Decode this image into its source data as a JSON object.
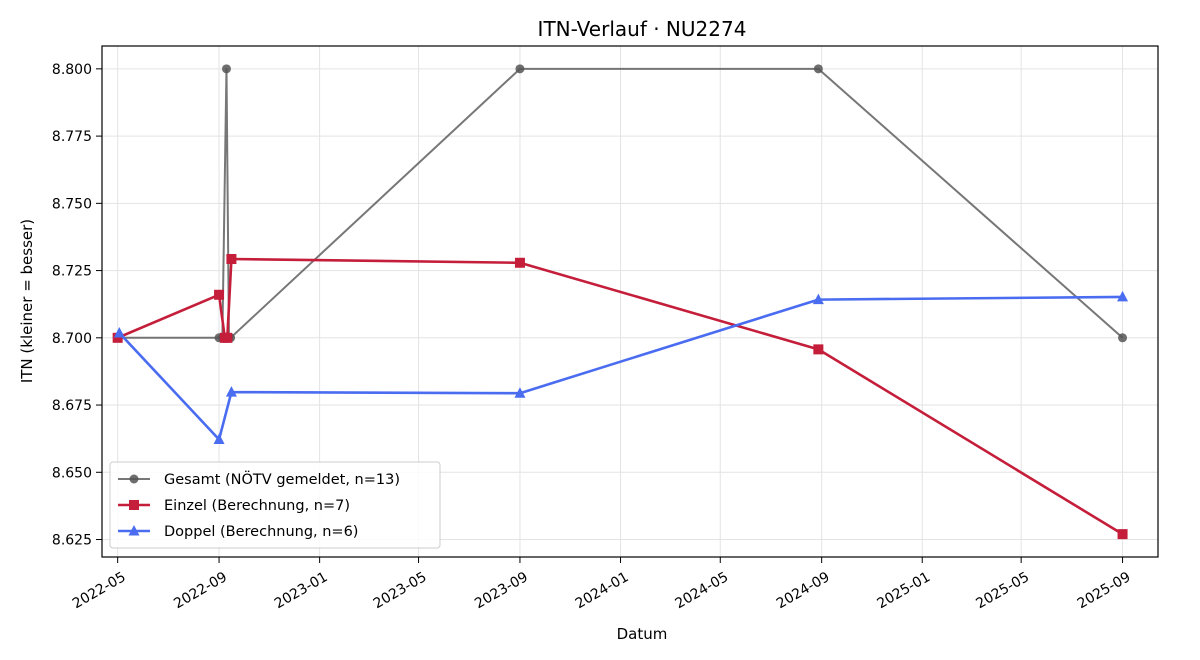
{
  "chart_data": {
    "type": "line",
    "title": "ITN-Verlauf · NU2274",
    "xlabel": "Datum",
    "ylabel": "ITN  (kleiner = besser)",
    "x_type": "date",
    "xlim": [
      "2022-04-12",
      "2025-10-14"
    ],
    "ylim": [
      8.6185,
      8.8085
    ],
    "x_ticks": [
      "2022-05-01",
      "2022-09-01",
      "2023-01-01",
      "2023-05-01",
      "2023-09-01",
      "2024-01-01",
      "2024-05-01",
      "2024-09-01",
      "2025-01-01",
      "2025-05-01",
      "2025-09-01"
    ],
    "x_tick_labels": [
      "2022-05",
      "2022-09",
      "2023-01",
      "2023-05",
      "2023-09",
      "2024-01",
      "2024-05",
      "2024-09",
      "2025-01",
      "2025-05",
      "2025-09"
    ],
    "y_ticks": [
      8.625,
      8.65,
      8.675,
      8.7,
      8.725,
      8.75,
      8.775,
      8.8
    ],
    "y_tick_labels": [
      "8.625",
      "8.650",
      "8.675",
      "8.700",
      "8.725",
      "8.750",
      "8.775",
      "8.800"
    ],
    "grid": true,
    "legend_position": "lower-left",
    "series": [
      {
        "name": "Gesamt (NÖTV gemeldet, n=13)",
        "color": "#555555",
        "marker": "circle",
        "points": [
          {
            "x": "2022-05-01",
            "y": 8.7
          },
          {
            "x": "2022-09-01",
            "y": 8.7
          },
          {
            "x": "2022-09-05",
            "y": 8.7
          },
          {
            "x": "2022-09-10",
            "y": 8.8
          },
          {
            "x": "2022-09-13",
            "y": 8.7
          },
          {
            "x": "2022-09-15",
            "y": 8.7
          },
          {
            "x": "2023-09-01",
            "y": 8.8
          },
          {
            "x": "2024-08-28",
            "y": 8.8
          },
          {
            "x": "2025-09-01",
            "y": 8.7
          }
        ]
      },
      {
        "name": "Einzel (Berechnung, n=7)",
        "color": "#c41e3a",
        "marker": "square",
        "points": [
          {
            "x": "2022-05-01",
            "y": 8.7
          },
          {
            "x": "2022-09-01",
            "y": 8.716
          },
          {
            "x": "2022-09-08",
            "y": 8.7
          },
          {
            "x": "2022-09-11",
            "y": 8.7
          },
          {
            "x": "2022-09-16",
            "y": 8.7293
          },
          {
            "x": "2023-09-01",
            "y": 8.7279
          },
          {
            "x": "2024-08-28",
            "y": 8.6957
          },
          {
            "x": "2025-09-01",
            "y": 8.627
          }
        ]
      },
      {
        "name": "Doppel (Berechnung, n=6)",
        "color": "#4a6cf0",
        "marker": "triangle",
        "points": [
          {
            "x": "2022-05-03",
            "y": 8.7018
          },
          {
            "x": "2022-09-01",
            "y": 8.6622
          },
          {
            "x": "2022-09-16",
            "y": 8.6798
          },
          {
            "x": "2023-09-01",
            "y": 8.6794
          },
          {
            "x": "2024-08-28",
            "y": 8.7142
          },
          {
            "x": "2025-09-01",
            "y": 8.7152
          }
        ]
      }
    ]
  }
}
